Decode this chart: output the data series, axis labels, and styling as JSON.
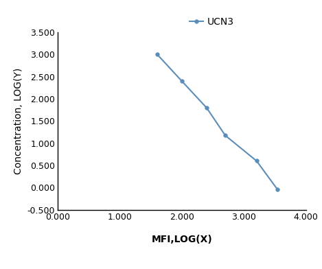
{
  "x": [
    1.602,
    2.0,
    2.398,
    2.699,
    3.204,
    3.544
  ],
  "y": [
    3.0,
    2.398,
    1.799,
    1.176,
    0.602,
    -0.046
  ],
  "line_color": "#5b8db8",
  "marker_color": "#5b8db8",
  "marker_style": "o",
  "marker_size": 4,
  "line_width": 1.5,
  "legend_label": "UCN3",
  "xlabel": "MFI,LOG(X)",
  "ylabel": "Concentration, LOG(Y)",
  "xlim": [
    0.0,
    4.0
  ],
  "ylim": [
    -0.5,
    3.5
  ],
  "xticks": [
    0.0,
    1.0,
    2.0,
    3.0,
    4.0
  ],
  "yticks": [
    -0.5,
    0.0,
    0.5,
    1.0,
    1.5,
    2.0,
    2.5,
    3.0,
    3.5
  ],
  "xtick_labels": [
    "0.000",
    "1.000",
    "2.000",
    "3.000",
    "4.000"
  ],
  "ytick_labels": [
    "-0.500",
    "0.000",
    "0.500",
    "1.000",
    "1.500",
    "2.000",
    "2.500",
    "3.000",
    "3.500"
  ],
  "background_color": "#ffffff",
  "axis_label_fontsize": 10,
  "tick_fontsize": 9,
  "legend_fontsize": 10
}
